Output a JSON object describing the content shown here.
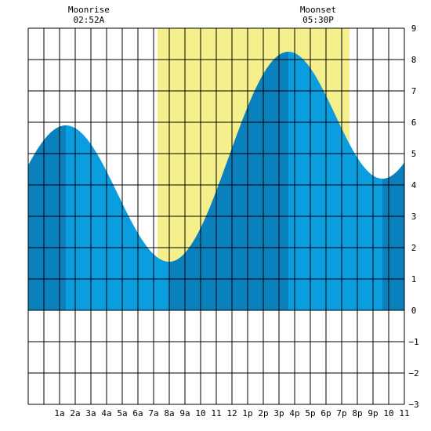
{
  "chart_data": {
    "type": "area",
    "title": "",
    "xlabel": "",
    "ylabel": "",
    "x_range_hours": [
      -1,
      23
    ],
    "ylim": [
      -3,
      9
    ],
    "y_ticks": [
      -3,
      -2,
      -1,
      0,
      1,
      2,
      3,
      4,
      5,
      6,
      7,
      8,
      9
    ],
    "x_tick_labels": [
      {
        "hour": 1,
        "label": "1a"
      },
      {
        "hour": 2,
        "label": "2a"
      },
      {
        "hour": 3,
        "label": "3a"
      },
      {
        "hour": 4,
        "label": "4a"
      },
      {
        "hour": 5,
        "label": "5a"
      },
      {
        "hour": 6,
        "label": "6a"
      },
      {
        "hour": 7,
        "label": "7a"
      },
      {
        "hour": 8,
        "label": "8a"
      },
      {
        "hour": 9,
        "label": "9a"
      },
      {
        "hour": 10,
        "label": "10"
      },
      {
        "hour": 11,
        "label": "11"
      },
      {
        "hour": 12,
        "label": "12"
      },
      {
        "hour": 13,
        "label": "1p"
      },
      {
        "hour": 14,
        "label": "2p"
      },
      {
        "hour": 15,
        "label": "3p"
      },
      {
        "hour": 16,
        "label": "4p"
      },
      {
        "hour": 17,
        "label": "5p"
      },
      {
        "hour": 18,
        "label": "6p"
      },
      {
        "hour": 19,
        "label": "7p"
      },
      {
        "hour": 20,
        "label": "8p"
      },
      {
        "hour": 21,
        "label": "9p"
      },
      {
        "hour": 22,
        "label": "10"
      },
      {
        "hour": 23,
        "label": "11"
      }
    ],
    "grid": true,
    "daylight_hours": [
      7.25,
      19.5
    ],
    "tide_extremes": [
      {
        "hour": 1.4,
        "height": 5.9,
        "kind": "high"
      },
      {
        "hour": 8.0,
        "height": 1.55,
        "kind": "low"
      },
      {
        "hour": 15.6,
        "height": 8.25,
        "kind": "high"
      },
      {
        "hour": 21.6,
        "height": 4.2,
        "kind": "low"
      }
    ],
    "tide_boundaries": [
      -1,
      1.4,
      8.0,
      15.6,
      21.6,
      23
    ],
    "moon_events": [
      {
        "hour": 2.87,
        "title": "Moonrise",
        "time": "02:52A"
      },
      {
        "hour": 17.5,
        "title": "Moonset",
        "time": "05:30P"
      }
    ]
  },
  "colors": {
    "background": "#ffffff",
    "grid": "#000000",
    "daylight": "#f5f08c",
    "tide_light": "#0a9de0",
    "tide_dark": "#0a80bd"
  }
}
